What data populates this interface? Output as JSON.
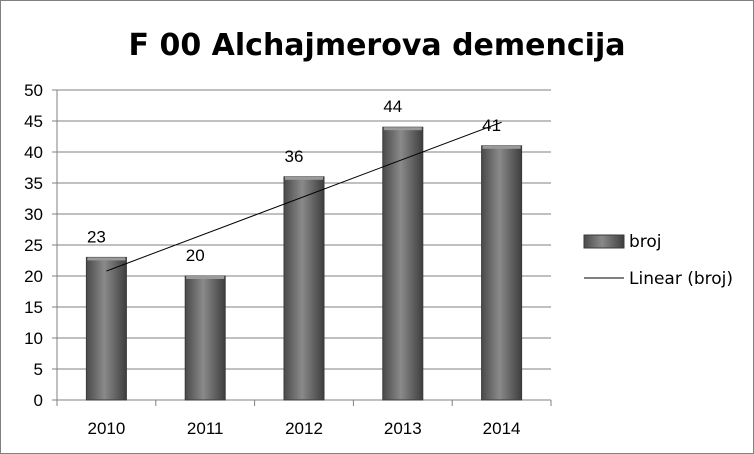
{
  "chart_data": {
    "type": "bar",
    "title": "F 00 Alchajmerova demencija",
    "categories": [
      "2010",
      "2011",
      "2012",
      "2013",
      "2014"
    ],
    "series": [
      {
        "name": "broj",
        "values": [
          23,
          20,
          36,
          44,
          41
        ]
      }
    ],
    "trendline": {
      "name": "Linear (broj)",
      "kind": "linear"
    },
    "ylim": [
      0,
      50
    ],
    "yticks": [
      0,
      5,
      10,
      15,
      20,
      25,
      30,
      35,
      40,
      45,
      50
    ],
    "grid": true,
    "legend_position": "right",
    "colors": {
      "bar": "#6b6b6b",
      "bar_edge": "#3a3a3a",
      "trendline": "#000000",
      "grid": "#808080"
    }
  }
}
